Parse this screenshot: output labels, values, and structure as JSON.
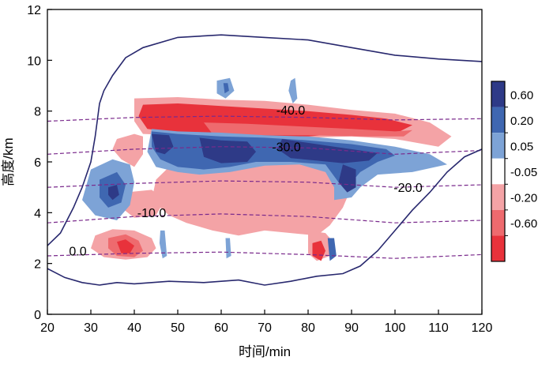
{
  "chart_data": {
    "type": "contour",
    "xlabel": "时间/min",
    "ylabel": "高度/km",
    "xlim": [
      20,
      120
    ],
    "ylim": [
      0,
      12
    ],
    "x_ticks": [
      20,
      30,
      40,
      50,
      60,
      70,
      80,
      90,
      100,
      110,
      120
    ],
    "y_ticks": [
      0,
      2,
      4,
      6,
      8,
      10,
      12
    ],
    "colorbar": {
      "labels": [
        "0.60",
        "0.20",
        "0.05",
        "-0.05",
        "-0.20",
        "-0.60"
      ],
      "colors": [
        "#2e3a87",
        "#3f67b1",
        "#7da3d6",
        "#ffffff",
        "#f4a3a6",
        "#ee6a6e",
        "#e8323b"
      ]
    },
    "isotherms": [
      {
        "label": "-40.0",
        "label_x": 76,
        "label_y": 8.0,
        "points": [
          [
            20,
            7.6
          ],
          [
            40,
            7.75
          ],
          [
            60,
            7.8
          ],
          [
            80,
            7.75
          ],
          [
            100,
            7.65
          ],
          [
            120,
            7.7
          ]
        ]
      },
      {
        "label": "-30.0",
        "label_x": 75,
        "label_y": 6.55,
        "points": [
          [
            20,
            6.3
          ],
          [
            40,
            6.5
          ],
          [
            60,
            6.6
          ],
          [
            80,
            6.55
          ],
          [
            100,
            6.3
          ],
          [
            120,
            6.45
          ]
        ]
      },
      {
        "label": "-20.0",
        "label_x": 103,
        "label_y": 4.95,
        "points": [
          [
            20,
            5.0
          ],
          [
            40,
            5.15
          ],
          [
            60,
            5.25
          ],
          [
            80,
            5.2
          ],
          [
            100,
            5.0
          ],
          [
            120,
            5.1
          ]
        ]
      },
      {
        "label": "-10.0",
        "label_x": 44,
        "label_y": 3.95,
        "points": [
          [
            20,
            3.6
          ],
          [
            40,
            3.85
          ],
          [
            60,
            3.95
          ],
          [
            80,
            3.85
          ],
          [
            100,
            3.6
          ],
          [
            120,
            3.7
          ]
        ]
      },
      {
        "label": "0.0",
        "label_x": 27,
        "label_y": 2.45,
        "points": [
          [
            20,
            2.3
          ],
          [
            40,
            2.4
          ],
          [
            60,
            2.45
          ],
          [
            80,
            2.35
          ],
          [
            100,
            2.2
          ],
          [
            120,
            2.35
          ]
        ]
      }
    ],
    "cloud_boundary": [
      [
        20,
        1.8
      ],
      [
        24,
        1.45
      ],
      [
        28,
        1.25
      ],
      [
        32,
        1.15
      ],
      [
        36,
        1.25
      ],
      [
        40,
        1.2
      ],
      [
        48,
        1.3
      ],
      [
        56,
        1.25
      ],
      [
        64,
        1.35
      ],
      [
        70,
        1.15
      ],
      [
        76,
        1.3
      ],
      [
        82,
        1.5
      ],
      [
        88,
        1.6
      ],
      [
        92,
        1.9
      ],
      [
        96,
        2.5
      ],
      [
        100,
        3.3
      ],
      [
        104,
        4.1
      ],
      [
        108,
        4.8
      ],
      [
        112,
        5.6
      ],
      [
        116,
        6.2
      ],
      [
        120,
        6.5
      ]
    ],
    "cloud_top": [
      [
        20,
        2.7
      ],
      [
        23,
        3.2
      ],
      [
        26,
        4.2
      ],
      [
        28,
        5.0
      ],
      [
        30,
        6.0
      ],
      [
        31,
        7.0
      ],
      [
        32,
        8.3
      ],
      [
        33,
        8.8
      ],
      [
        35,
        9.4
      ],
      [
        38,
        10.1
      ],
      [
        42,
        10.5
      ],
      [
        50,
        10.9
      ],
      [
        60,
        11.0
      ],
      [
        70,
        10.9
      ],
      [
        80,
        10.8
      ],
      [
        90,
        10.5
      ],
      [
        100,
        10.2
      ],
      [
        110,
        10.05
      ],
      [
        120,
        9.95
      ]
    ]
  }
}
